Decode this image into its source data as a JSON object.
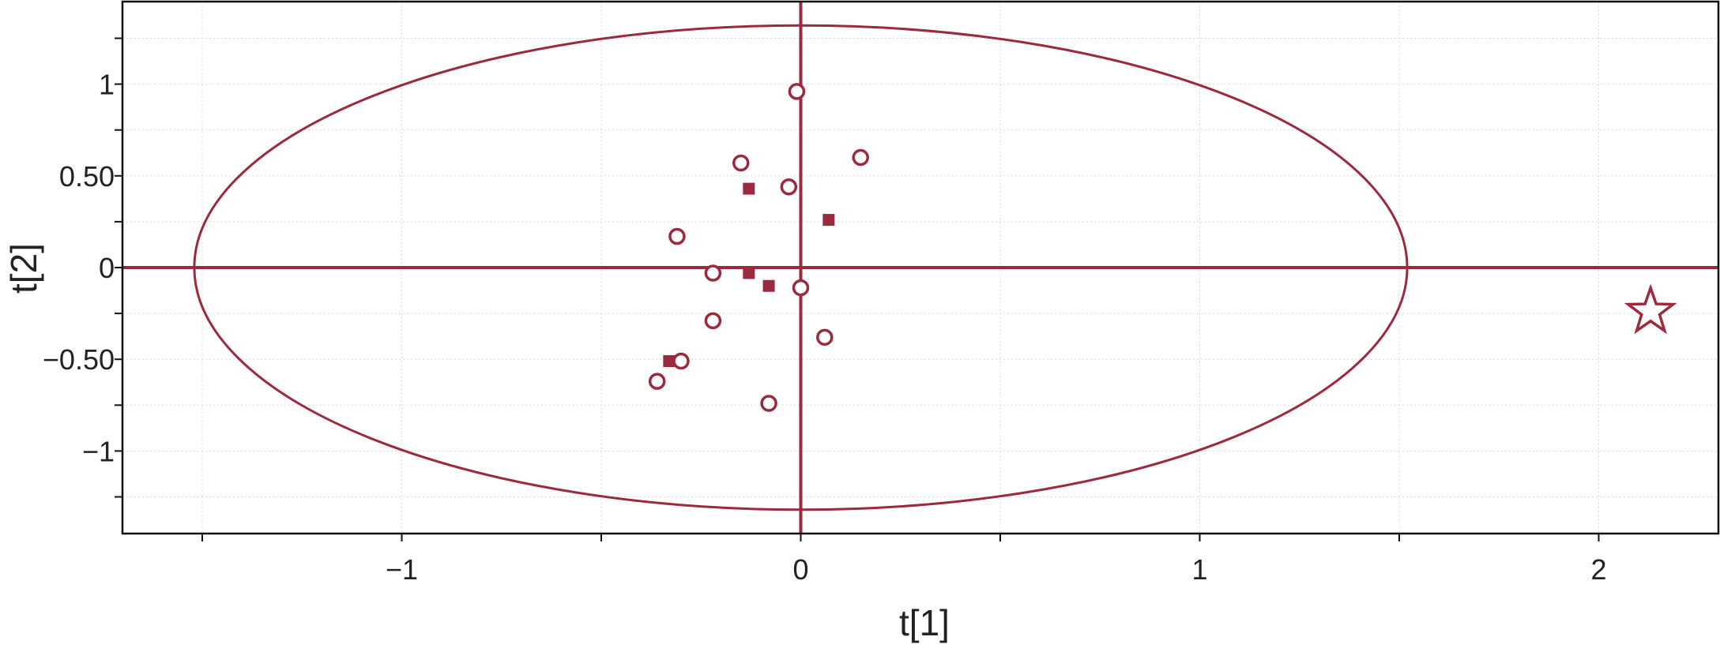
{
  "chart_data": {
    "type": "scatter",
    "xlabel": "t[1]",
    "ylabel": "t[2]",
    "xlim": [
      -1.7,
      2.3
    ],
    "ylim": [
      -1.45,
      1.45
    ],
    "x_ticks": [
      {
        "value": -1,
        "label": "−1"
      },
      {
        "value": 0,
        "label": "0"
      },
      {
        "value": 1,
        "label": "1"
      },
      {
        "value": 2,
        "label": "2"
      }
    ],
    "y_ticks": [
      {
        "value": 1,
        "label": "1"
      },
      {
        "value": 0.5,
        "label": "0.50"
      },
      {
        "value": 0,
        "label": "0"
      },
      {
        "value": -0.5,
        "label": "−0.50"
      },
      {
        "value": -1,
        "label": "−1"
      }
    ],
    "grid": true,
    "color": "#9b2a3e",
    "ellipse": {
      "center": [
        0,
        0
      ],
      "rx": 1.52,
      "ry": 1.32
    },
    "series": [
      {
        "marker": "circle",
        "points": [
          {
            "x": -0.01,
            "y": 0.96
          },
          {
            "x": 0.15,
            "y": 0.6
          },
          {
            "x": -0.15,
            "y": 0.57
          },
          {
            "x": -0.03,
            "y": 0.44
          },
          {
            "x": -0.31,
            "y": 0.17
          },
          {
            "x": -0.22,
            "y": -0.03
          },
          {
            "x": 0.0,
            "y": -0.11
          },
          {
            "x": -0.22,
            "y": -0.29
          },
          {
            "x": 0.06,
            "y": -0.38
          },
          {
            "x": -0.3,
            "y": -0.51
          },
          {
            "x": -0.36,
            "y": -0.62
          },
          {
            "x": -0.08,
            "y": -0.74
          }
        ]
      },
      {
        "marker": "square",
        "points": [
          {
            "x": -0.13,
            "y": 0.43
          },
          {
            "x": 0.07,
            "y": 0.26
          },
          {
            "x": -0.13,
            "y": -0.03
          },
          {
            "x": -0.08,
            "y": -0.1
          },
          {
            "x": -0.33,
            "y": -0.51
          }
        ]
      },
      {
        "marker": "star",
        "points": [
          {
            "x": 2.13,
            "y": -0.24
          }
        ]
      }
    ]
  }
}
